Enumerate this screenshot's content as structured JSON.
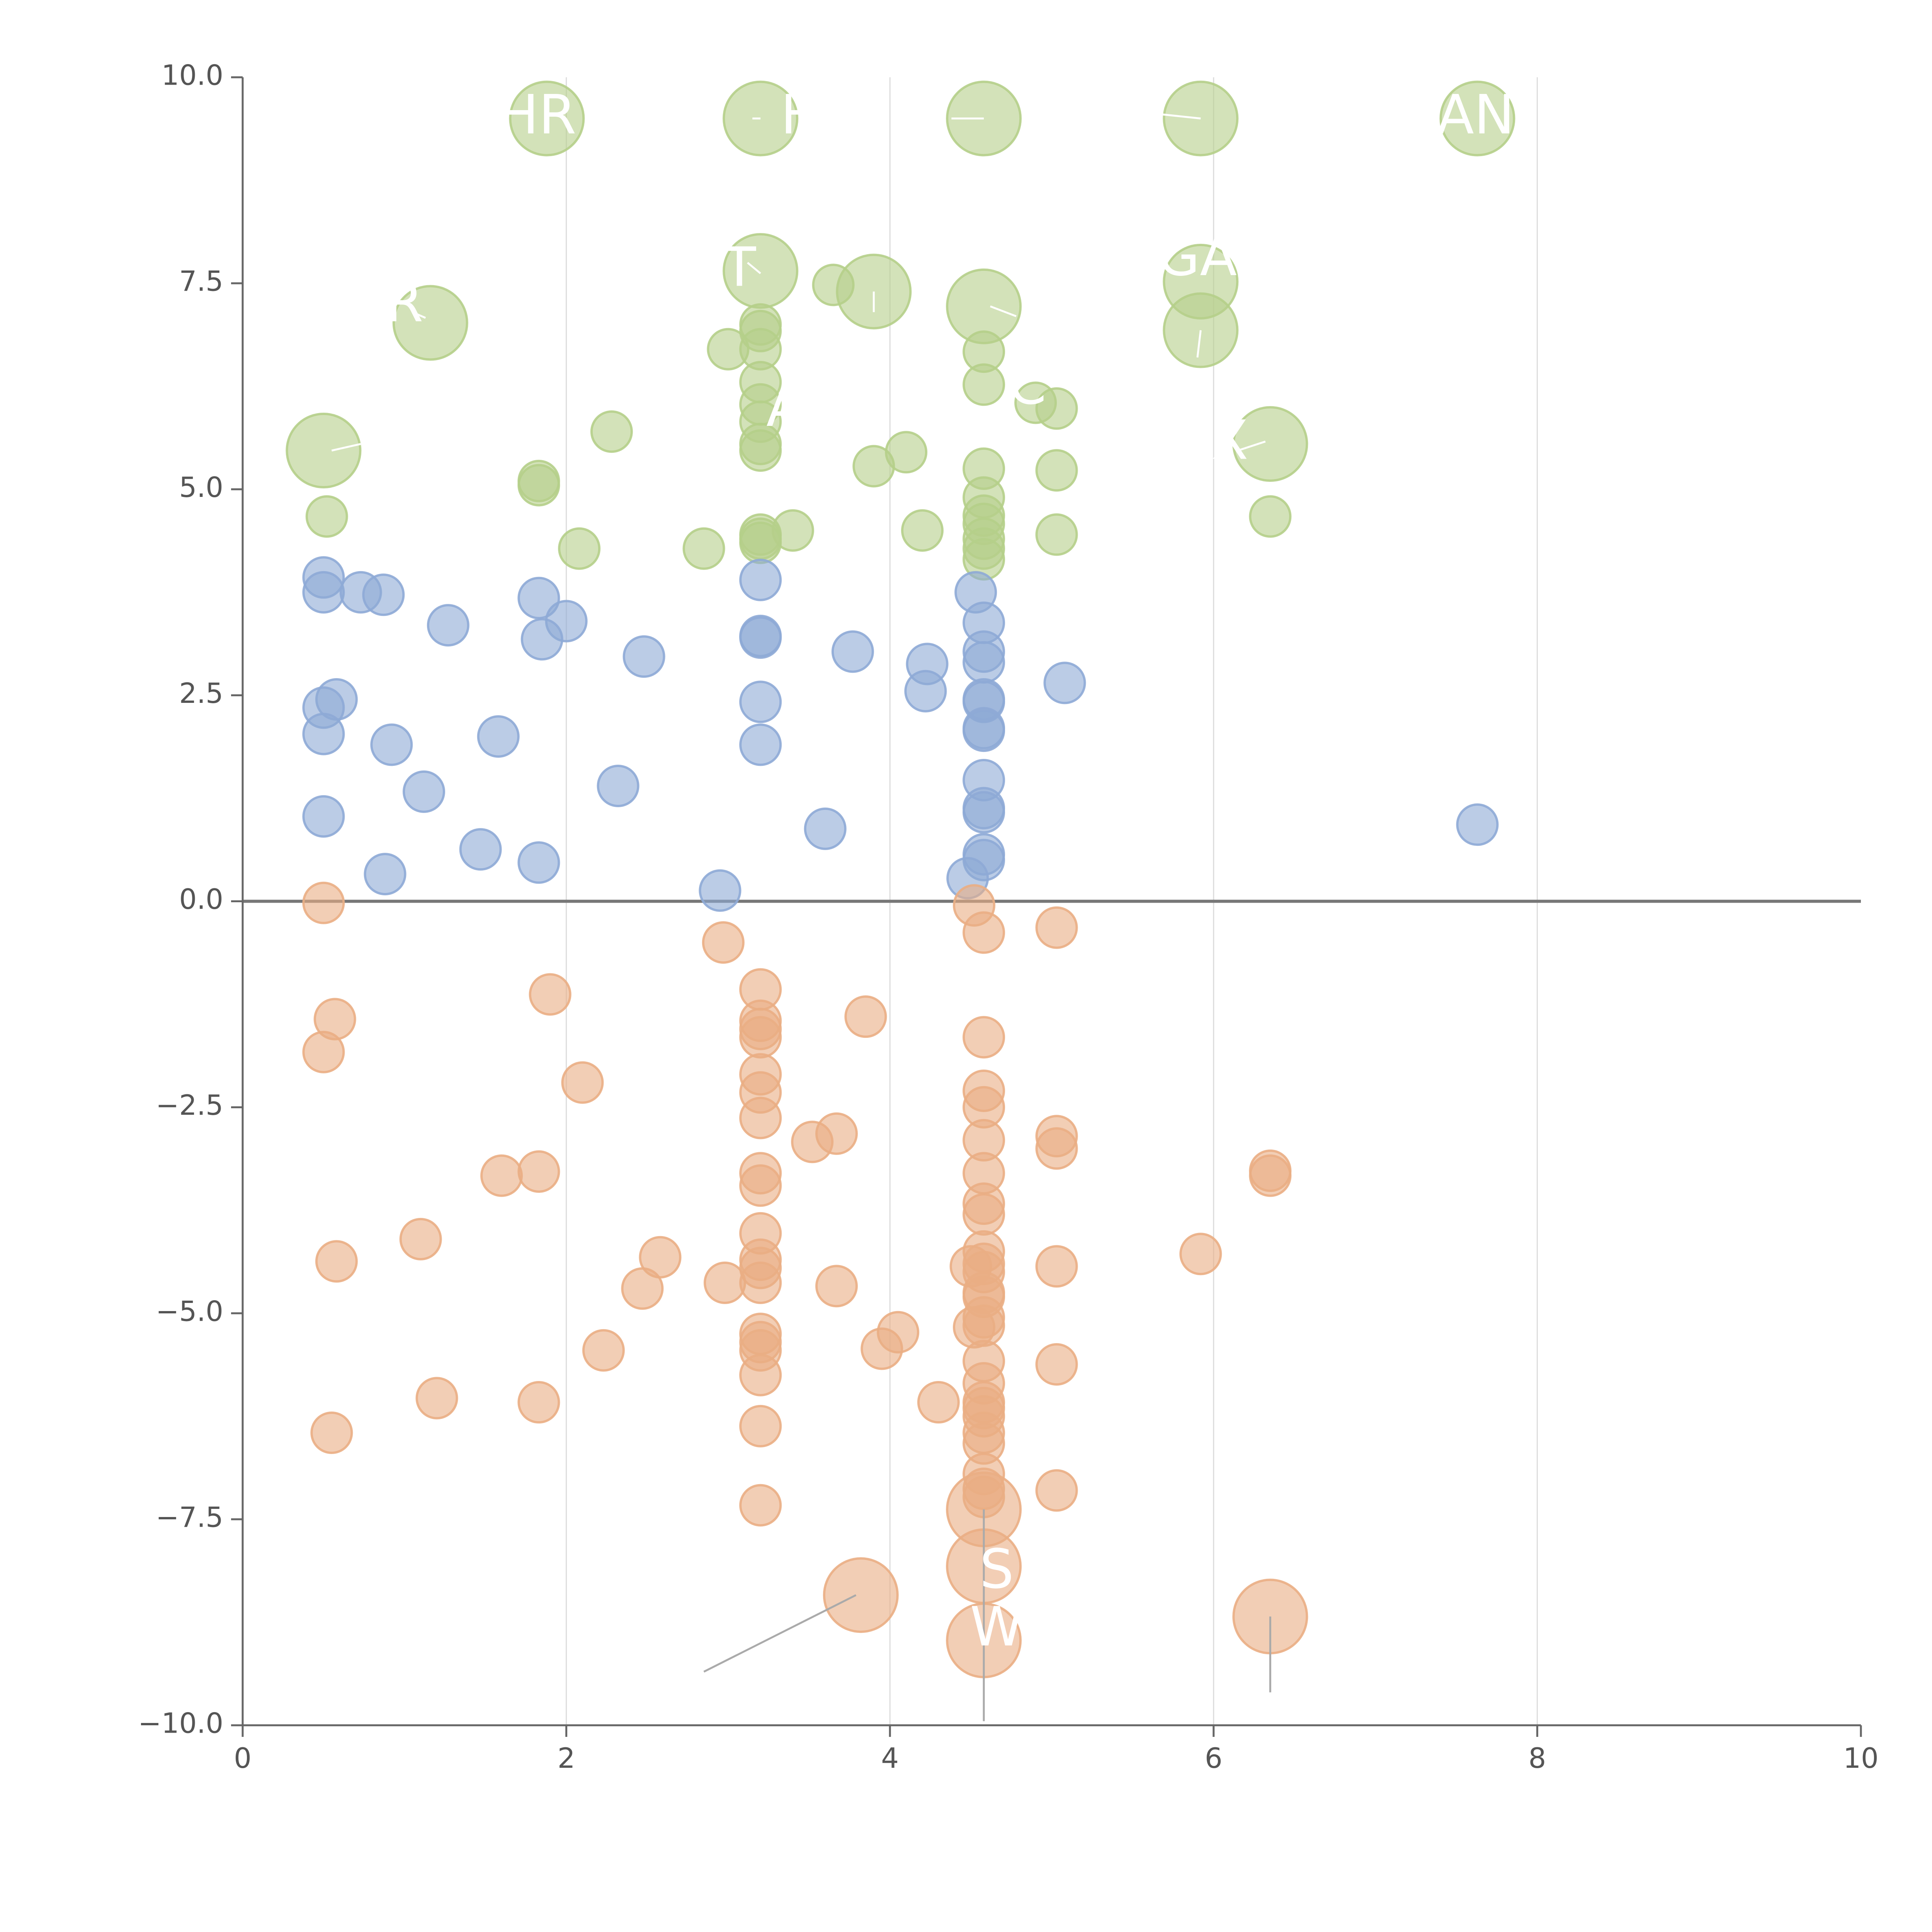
{
  "chart_data": {
    "type": "scatter",
    "title": "",
    "xlabel": "",
    "ylabel": "",
    "xlim": [
      0,
      10
    ],
    "ylim": [
      -10,
      10
    ],
    "x_ticks": [
      "0",
      "2",
      "4",
      "6",
      "8",
      "10"
    ],
    "x_tick_values": [
      0,
      2,
      4,
      6,
      8,
      10
    ],
    "y_ticks": [
      "10.0",
      "7.5",
      "5.0",
      "2.5",
      "0.0",
      "−2.5",
      "−5.0",
      "−7.5",
      "−10.0"
    ],
    "y_tick_values": [
      10,
      7.5,
      5,
      2.5,
      0,
      -2.5,
      -5,
      -7.5,
      -10
    ],
    "vertical_gridlines": [
      2,
      4,
      6,
      8
    ],
    "zero_line": 0,
    "colors": {
      "green": "#b5cf8a",
      "blue": "#8eaad6",
      "orange": "#eaae84",
      "axis": "#666666",
      "gridline": "#dcdcdc",
      "label_line": "#aaaaaa"
    },
    "series": [
      {
        "name": "green",
        "color": "#b5cf8a",
        "points": [
          [
            1.88,
            9.5,
            1
          ],
          [
            3.2,
            9.5,
            1
          ],
          [
            4.58,
            9.5,
            1
          ],
          [
            5.92,
            9.5,
            1
          ],
          [
            7.63,
            9.5,
            1
          ],
          [
            3.2,
            7.65,
            1
          ],
          [
            3.9,
            7.4,
            1
          ],
          [
            4.58,
            7.22,
            1
          ],
          [
            5.92,
            7.52,
            1
          ],
          [
            5.92,
            6.93,
            1
          ],
          [
            1.16,
            7.02,
            1
          ],
          [
            0.5,
            5.47,
            1
          ],
          [
            6.35,
            5.55,
            1
          ],
          [
            3.65,
            7.48,
            0
          ],
          [
            3.2,
            7.0,
            0
          ],
          [
            3.2,
            6.92,
            0
          ],
          [
            3.2,
            6.7,
            0
          ],
          [
            3.0,
            6.7,
            0
          ],
          [
            4.58,
            6.67,
            0
          ],
          [
            3.2,
            6.3,
            0
          ],
          [
            4.58,
            6.27,
            0
          ],
          [
            3.2,
            6.03,
            0
          ],
          [
            4.9,
            6.05,
            0
          ],
          [
            5.03,
            5.98,
            0
          ],
          [
            3.2,
            5.82,
            0
          ],
          [
            2.28,
            5.7,
            0
          ],
          [
            3.2,
            5.55,
            0
          ],
          [
            3.2,
            5.47,
            0
          ],
          [
            4.1,
            5.45,
            0
          ],
          [
            3.9,
            5.28,
            0
          ],
          [
            4.58,
            5.25,
            0
          ],
          [
            5.03,
            5.23,
            0
          ],
          [
            1.83,
            5.1,
            0
          ],
          [
            1.83,
            5.05,
            0
          ],
          [
            4.58,
            4.9,
            0
          ],
          [
            0.52,
            4.67,
            0
          ],
          [
            6.35,
            4.67,
            0
          ],
          [
            4.58,
            4.68,
            0
          ],
          [
            4.58,
            4.58,
            0
          ],
          [
            3.4,
            4.5,
            0
          ],
          [
            4.2,
            4.5,
            0
          ],
          [
            5.03,
            4.45,
            0
          ],
          [
            3.2,
            4.45,
            0
          ],
          [
            3.2,
            4.4,
            0
          ],
          [
            4.58,
            4.4,
            0
          ],
          [
            3.2,
            4.35,
            0
          ],
          [
            2.08,
            4.28,
            0
          ],
          [
            2.85,
            4.28,
            0
          ],
          [
            4.58,
            4.28,
            0
          ],
          [
            4.58,
            4.15,
            0
          ]
        ]
      },
      {
        "name": "blue",
        "color": "#8eaad6",
        "points": [
          [
            0.5,
            3.93,
            0
          ],
          [
            0.5,
            3.75,
            0
          ],
          [
            0.73,
            3.75,
            0
          ],
          [
            0.87,
            3.72,
            0
          ],
          [
            1.83,
            3.68,
            0
          ],
          [
            1.27,
            3.35,
            0
          ],
          [
            2.0,
            3.4,
            0
          ],
          [
            1.85,
            3.18,
            0
          ],
          [
            3.2,
            3.9,
            0
          ],
          [
            3.2,
            3.22,
            0
          ],
          [
            3.2,
            3.2,
            0
          ],
          [
            4.53,
            3.75,
            0
          ],
          [
            4.58,
            3.38,
            0
          ],
          [
            3.77,
            3.03,
            0
          ],
          [
            4.58,
            3.03,
            0
          ],
          [
            4.58,
            2.9,
            0
          ],
          [
            2.48,
            2.97,
            0
          ],
          [
            4.23,
            2.88,
            0
          ],
          [
            4.22,
            2.55,
            0
          ],
          [
            5.08,
            2.65,
            0
          ],
          [
            0.58,
            2.45,
            0
          ],
          [
            0.5,
            2.35,
            0
          ],
          [
            3.2,
            2.42,
            0
          ],
          [
            4.58,
            2.45,
            0
          ],
          [
            4.58,
            2.42,
            0
          ],
          [
            0.5,
            2.03,
            0
          ],
          [
            1.58,
            2.0,
            0
          ],
          [
            4.58,
            2.1,
            0
          ],
          [
            4.58,
            2.07,
            0
          ],
          [
            0.92,
            1.9,
            0
          ],
          [
            3.2,
            1.9,
            0
          ],
          [
            4.58,
            1.47,
            0
          ],
          [
            2.32,
            1.4,
            0
          ],
          [
            1.12,
            1.33,
            0
          ],
          [
            4.58,
            1.13,
            0
          ],
          [
            4.58,
            1.08,
            0
          ],
          [
            0.5,
            1.03,
            0
          ],
          [
            3.6,
            0.88,
            0
          ],
          [
            7.63,
            0.93,
            0
          ],
          [
            1.47,
            0.63,
            0
          ],
          [
            4.58,
            0.57,
            0
          ],
          [
            4.58,
            0.5,
            0
          ],
          [
            1.83,
            0.47,
            0
          ],
          [
            0.88,
            0.33,
            0
          ],
          [
            4.48,
            0.28,
            0
          ],
          [
            2.95,
            0.13,
            0
          ]
        ]
      },
      {
        "name": "orange",
        "color": "#eaae84",
        "points": [
          [
            0.5,
            -0.02,
            0
          ],
          [
            4.52,
            -0.05,
            0
          ],
          [
            4.58,
            -0.38,
            0
          ],
          [
            5.03,
            -0.32,
            0
          ],
          [
            2.97,
            -0.5,
            0
          ],
          [
            3.2,
            -1.07,
            0
          ],
          [
            1.9,
            -1.13,
            0
          ],
          [
            0.57,
            -1.43,
            0
          ],
          [
            3.2,
            -1.45,
            0
          ],
          [
            3.2,
            -1.55,
            0
          ],
          [
            3.2,
            -1.65,
            0
          ],
          [
            3.85,
            -1.4,
            0
          ],
          [
            4.58,
            -1.65,
            0
          ],
          [
            0.5,
            -1.83,
            0
          ],
          [
            3.2,
            -2.1,
            0
          ],
          [
            2.1,
            -2.2,
            0
          ],
          [
            3.2,
            -2.32,
            0
          ],
          [
            4.58,
            -2.3,
            0
          ],
          [
            4.58,
            -2.5,
            0
          ],
          [
            3.2,
            -2.63,
            0
          ],
          [
            3.67,
            -2.82,
            0
          ],
          [
            3.52,
            -2.92,
            0
          ],
          [
            4.58,
            -2.9,
            0
          ],
          [
            5.03,
            -2.85,
            0
          ],
          [
            5.03,
            -3.0,
            0
          ],
          [
            1.83,
            -3.28,
            0
          ],
          [
            1.6,
            -3.33,
            0
          ],
          [
            3.2,
            -3.3,
            0
          ],
          [
            3.2,
            -3.45,
            0
          ],
          [
            4.58,
            -3.3,
            0
          ],
          [
            6.35,
            -3.27,
            0
          ],
          [
            6.35,
            -3.33,
            0
          ],
          [
            4.58,
            -3.67,
            0
          ],
          [
            4.58,
            -3.8,
            0
          ],
          [
            1.1,
            -4.1,
            0
          ],
          [
            3.2,
            -4.03,
            0
          ],
          [
            0.58,
            -4.37,
            0
          ],
          [
            2.58,
            -4.32,
            0
          ],
          [
            5.92,
            -4.28,
            0
          ],
          [
            4.58,
            -4.25,
            0
          ],
          [
            3.2,
            -4.35,
            0
          ],
          [
            3.2,
            -4.45,
            0
          ],
          [
            4.5,
            -4.43,
            0
          ],
          [
            4.58,
            -4.4,
            0
          ],
          [
            4.58,
            -4.5,
            0
          ],
          [
            5.03,
            -4.43,
            0
          ],
          [
            2.98,
            -4.63,
            0
          ],
          [
            3.2,
            -4.63,
            0
          ],
          [
            3.67,
            -4.67,
            0
          ],
          [
            2.47,
            -4.7,
            0
          ],
          [
            4.58,
            -4.75,
            0
          ],
          [
            4.58,
            -4.8,
            0
          ],
          [
            4.58,
            -5.05,
            0
          ],
          [
            4.05,
            -5.23,
            0
          ],
          [
            4.52,
            -5.17,
            0
          ],
          [
            4.58,
            -5.15,
            0
          ],
          [
            3.2,
            -5.25,
            0
          ],
          [
            3.2,
            -5.35,
            0
          ],
          [
            3.2,
            -5.45,
            0
          ],
          [
            2.23,
            -5.45,
            0
          ],
          [
            3.95,
            -5.43,
            0
          ],
          [
            4.58,
            -5.58,
            0
          ],
          [
            5.03,
            -5.62,
            0
          ],
          [
            3.2,
            -5.75,
            0
          ],
          [
            4.58,
            -5.85,
            0
          ],
          [
            1.2,
            -6.03,
            0
          ],
          [
            1.83,
            -6.08,
            0
          ],
          [
            4.3,
            -6.08,
            0
          ],
          [
            4.58,
            -6.08,
            0
          ],
          [
            4.58,
            -6.15,
            0
          ],
          [
            4.58,
            -6.25,
            0
          ],
          [
            3.2,
            -6.37,
            0
          ],
          [
            0.55,
            -6.45,
            0
          ],
          [
            4.58,
            -6.45,
            0
          ],
          [
            4.58,
            -6.58,
            0
          ],
          [
            4.58,
            -6.95,
            0
          ],
          [
            4.58,
            -7.13,
            0
          ],
          [
            5.03,
            -7.15,
            0
          ],
          [
            4.58,
            -7.23,
            0
          ],
          [
            3.2,
            -7.33,
            0
          ],
          [
            4.58,
            -7.38,
            1
          ],
          [
            4.58,
            -8.07,
            1
          ],
          [
            3.82,
            -8.42,
            1
          ],
          [
            6.35,
            -8.68,
            1
          ],
          [
            4.58,
            -8.97,
            1
          ]
        ]
      }
    ],
    "annotations": [
      {
        "text": "HR",
        "x": 1.82,
        "y": 9.5,
        "ax": 1.88,
        "ay": 9.5
      },
      {
        "text": "H",
        "x": 3.45,
        "y": 9.5,
        "ax": 3.2,
        "ay": 9.5
      },
      {
        "text": "T",
        "x": 3.07,
        "y": 7.65,
        "ax": 3.2,
        "ay": 7.65
      },
      {
        "text": "GA",
        "x": 5.9,
        "y": 7.78,
        "ax": 5.92,
        "ay": 7.52
      },
      {
        "text": "R",
        "x": 1.0,
        "y": 7.22,
        "ax": 1.16,
        "ay": 7.02
      },
      {
        "text": "A",
        "x": 3.35,
        "y": 5.95,
        "ax": 3.2,
        "ay": 5.95
      },
      {
        "text": "C",
        "x": 4.85,
        "y": 6.22,
        "ax": 4.58,
        "ay": 6.27
      },
      {
        "text": "X",
        "x": 6.1,
        "y": 5.55,
        "ax": 6.35,
        "ay": 5.55
      },
      {
        "text": "AN",
        "x": 7.62,
        "y": 9.5,
        "ax": 7.63,
        "ay": 9.5
      },
      {
        "text": "S",
        "x": 4.66,
        "y": -8.15,
        "ax": 4.58,
        "ay": -8.07
      },
      {
        "text": "W",
        "x": 4.66,
        "y": -8.85,
        "ax": 4.58,
        "ay": -8.97
      }
    ],
    "leader_lines": [
      [
        5.68,
        9.55,
        5.92,
        9.5
      ],
      [
        4.38,
        9.5,
        4.58,
        9.5
      ],
      [
        3.15,
        9.5,
        3.2,
        9.5
      ],
      [
        0.55,
        5.47,
        0.73,
        5.55
      ],
      [
        1.13,
        7.08,
        1.06,
        7.14
      ],
      [
        3.2,
        7.62,
        3.12,
        7.75
      ],
      [
        3.9,
        7.4,
        3.9,
        7.15
      ],
      [
        4.62,
        7.22,
        4.78,
        7.1
      ],
      [
        5.92,
        6.93,
        5.9,
        6.6
      ],
      [
        6.32,
        5.58,
        6.15,
        5.47
      ],
      [
        4.58,
        -7.38,
        4.58,
        -9.95
      ],
      [
        3.79,
        -8.42,
        2.85,
        -9.35
      ],
      [
        6.35,
        -8.68,
        6.35,
        -9.6
      ]
    ]
  }
}
